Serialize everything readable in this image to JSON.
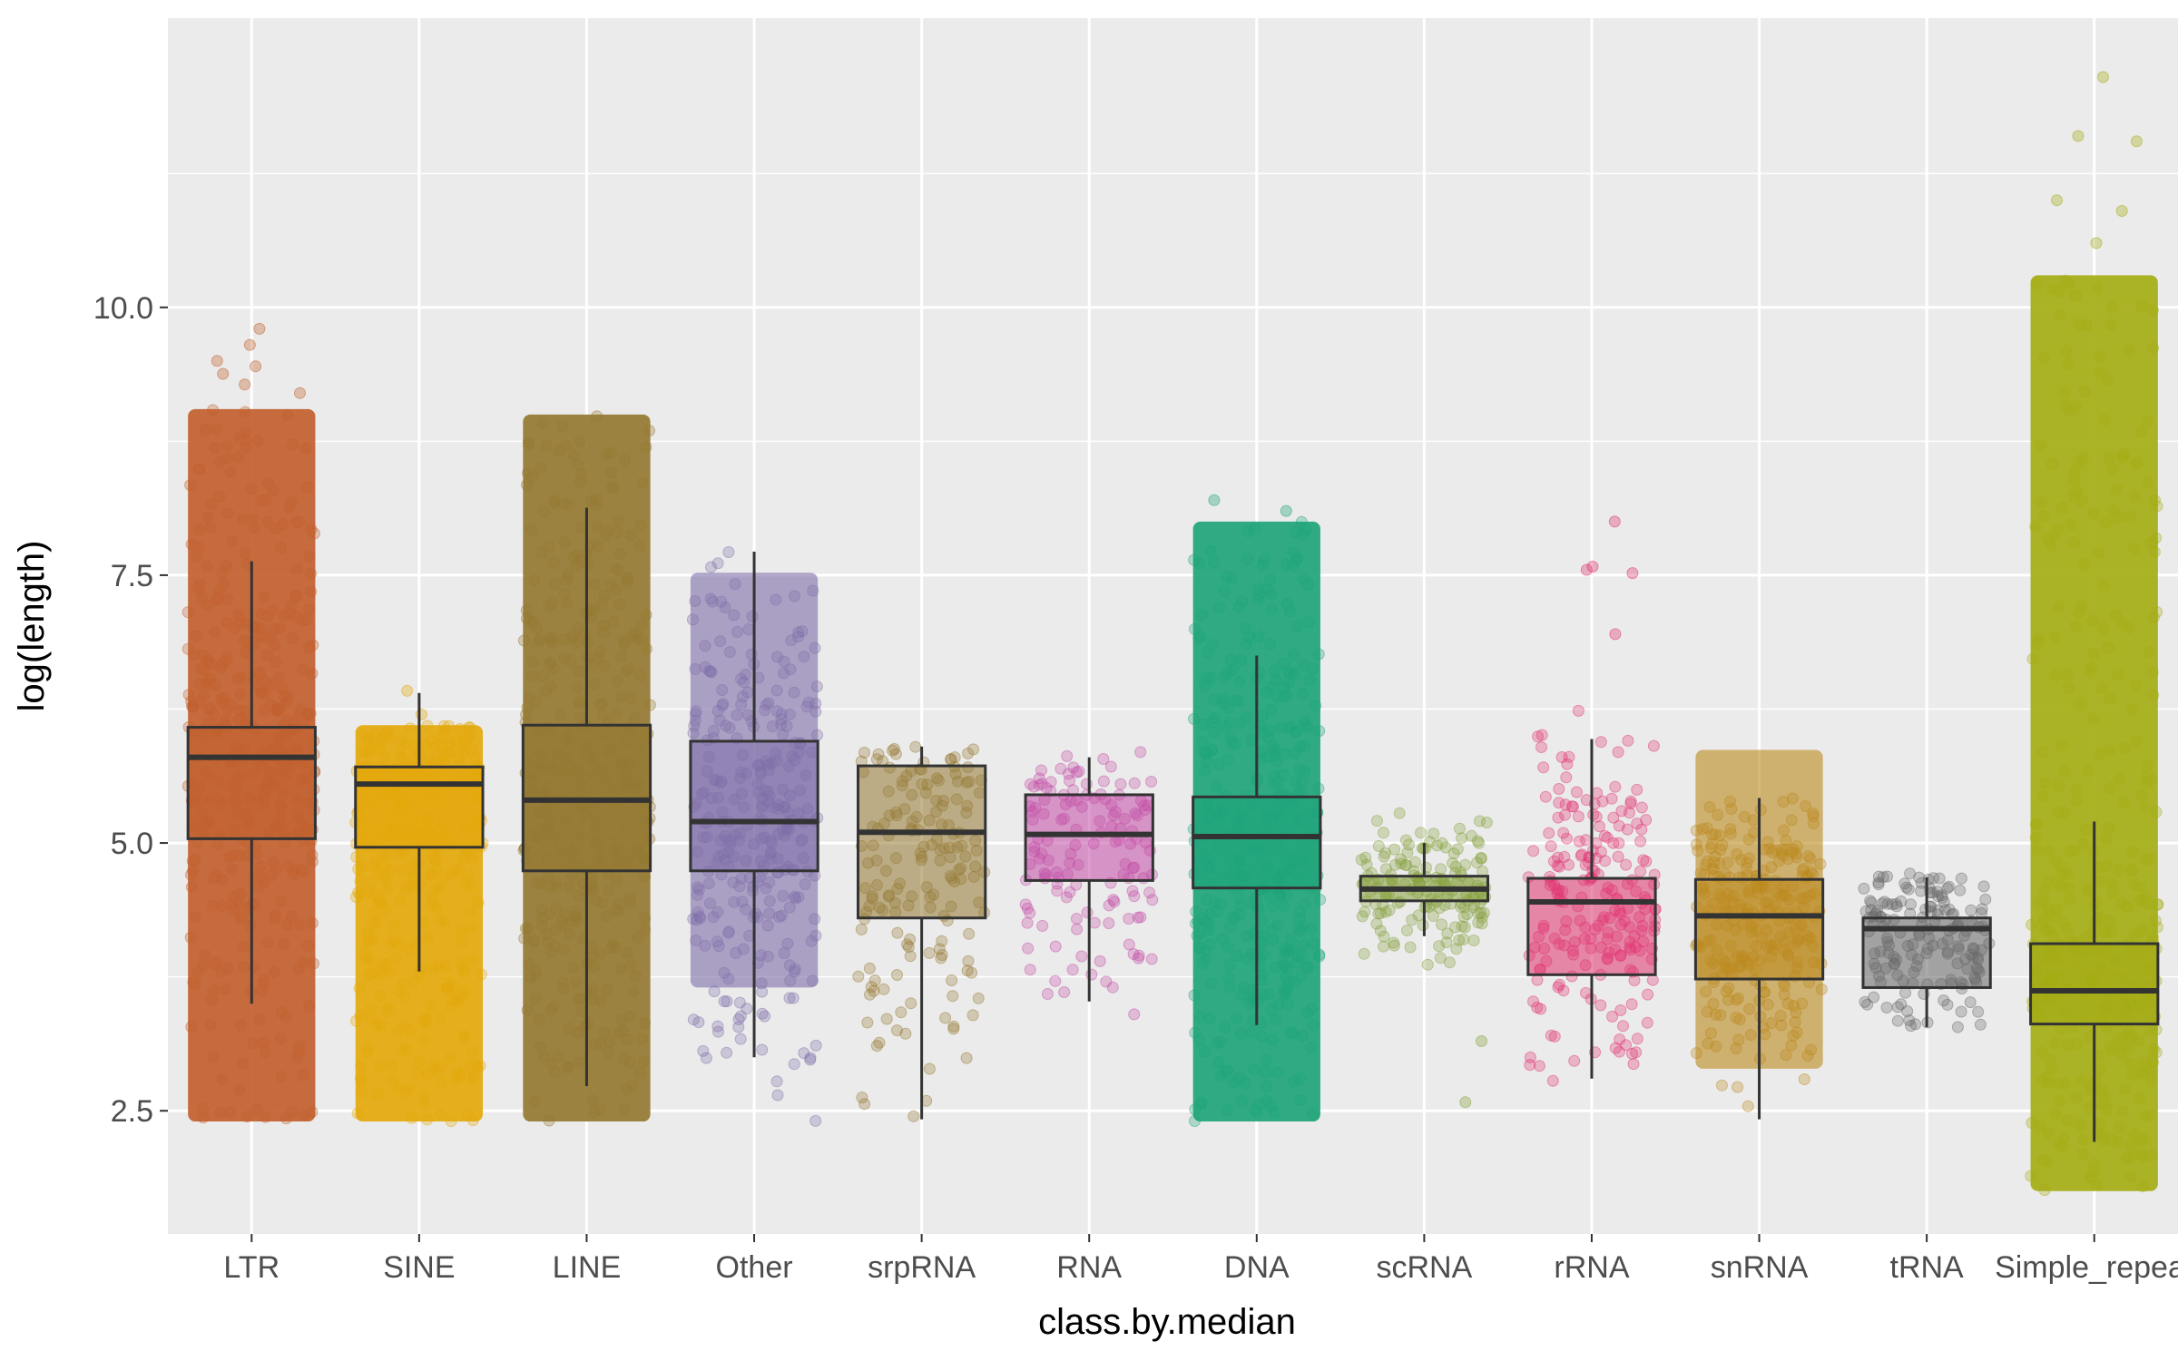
{
  "chart_data": {
    "type": "box",
    "xlabel": "class.by.median",
    "ylabel": "log(length)",
    "ylim": [
      1.35,
      12.7
    ],
    "yticks": [
      2.5,
      5.0,
      7.5,
      10.0
    ],
    "ytick_labels": [
      "2.5",
      "5.0",
      "7.5",
      "10.0"
    ],
    "grid": true,
    "legend": "none",
    "categories": [
      "LTR",
      "SINE",
      "LINE",
      "Other",
      "srpRNA",
      "RNA",
      "DNA",
      "scRNA",
      "rRNA",
      "snRNA",
      "tRNA",
      "Simple_repeat"
    ],
    "series": [
      {
        "category": "LTR",
        "color": "#c1602e",
        "q1": 5.04,
        "median": 5.8,
        "q3": 6.08,
        "whisker_low": 3.5,
        "whisker_high": 7.63,
        "point_min": 2.4,
        "point_max": 9.05,
        "density": "very_high",
        "outliers": [
          9.2,
          9.28,
          9.38,
          9.45,
          9.5,
          9.65,
          9.8
        ]
      },
      {
        "category": "SINE",
        "color": "#e3a80b",
        "q1": 4.96,
        "median": 5.55,
        "q3": 5.71,
        "whisker_low": 3.8,
        "whisker_high": 6.4,
        "point_min": 2.4,
        "point_max": 6.1,
        "density": "very_high",
        "outliers": [
          6.2,
          6.42
        ]
      },
      {
        "category": "LINE",
        "color": "#947831",
        "q1": 4.74,
        "median": 5.4,
        "q3": 6.1,
        "whisker_low": 2.73,
        "whisker_high": 8.13,
        "point_min": 2.4,
        "point_max": 9.0,
        "density": "very_high",
        "outliers": []
      },
      {
        "category": "Other",
        "color": "#7e6ea8",
        "q1": 4.74,
        "median": 5.2,
        "q3": 5.95,
        "whisker_low": 3.0,
        "whisker_high": 7.72,
        "point_min": 2.4,
        "point_max": 7.8,
        "density": "high",
        "outliers": []
      },
      {
        "category": "srpRNA",
        "color": "#947831",
        "q1": 4.3,
        "median": 5.1,
        "q3": 5.72,
        "whisker_low": 2.42,
        "whisker_high": 5.9,
        "point_min": 2.4,
        "point_max": 5.9,
        "density": "medium",
        "outliers": []
      },
      {
        "category": "RNA",
        "color": "#c34ca6",
        "q1": 4.65,
        "median": 5.08,
        "q3": 5.45,
        "whisker_low": 3.52,
        "whisker_high": 5.8,
        "point_min": 3.4,
        "point_max": 5.85,
        "density": "low",
        "outliers": []
      },
      {
        "category": "DNA",
        "color": "#1ea47a",
        "q1": 4.58,
        "median": 5.06,
        "q3": 5.43,
        "whisker_low": 3.3,
        "whisker_high": 6.75,
        "point_min": 2.4,
        "point_max": 8.0,
        "density": "very_high",
        "outliers": [
          8.1,
          8.2
        ]
      },
      {
        "category": "scRNA",
        "color": "#86a03d",
        "q1": 4.46,
        "median": 4.57,
        "q3": 4.69,
        "whisker_low": 4.13,
        "whisker_high": 5.0,
        "point_min": 3.3,
        "point_max": 5.3,
        "density": "low",
        "outliers": [
          2.58,
          3.15
        ]
      },
      {
        "category": "rRNA",
        "color": "#e0336f",
        "q1": 3.77,
        "median": 4.45,
        "q3": 4.67,
        "whisker_low": 2.8,
        "whisker_high": 5.97,
        "point_min": 2.75,
        "point_max": 6.7,
        "density": "medium",
        "outliers": [
          6.95,
          7.52,
          7.55,
          7.58,
          8.0
        ]
      },
      {
        "category": "snRNA",
        "color": "#bb881c",
        "q1": 3.73,
        "median": 4.32,
        "q3": 4.66,
        "whisker_low": 2.42,
        "whisker_high": 5.42,
        "point_min": 2.4,
        "point_max": 5.42,
        "density": "high",
        "outliers": []
      },
      {
        "category": "tRNA",
        "color": "#666666",
        "q1": 3.65,
        "median": 4.2,
        "q3": 4.3,
        "whisker_low": 3.28,
        "whisker_high": 4.68,
        "point_min": 3.28,
        "point_max": 4.72,
        "density": "medium",
        "outliers": []
      },
      {
        "category": "Simple_repeat",
        "color": "#a4ac14",
        "q1": 3.31,
        "median": 3.62,
        "q3": 4.06,
        "whisker_low": 2.21,
        "whisker_high": 5.2,
        "point_min": 1.75,
        "point_max": 10.3,
        "density": "very_high",
        "outliers": [
          10.6,
          10.9,
          11.0,
          11.55,
          11.6,
          12.15
        ]
      }
    ]
  }
}
